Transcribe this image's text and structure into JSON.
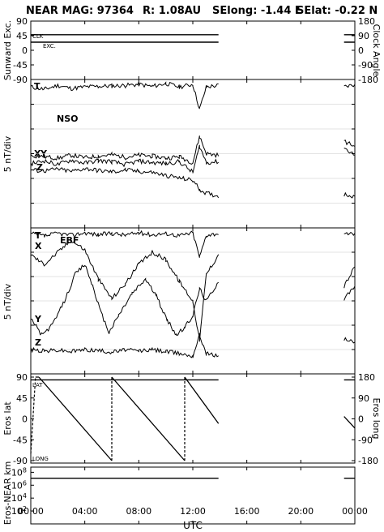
{
  "header": {
    "title": "NEAR MAG: 97364",
    "distance": "R: 1.08AU",
    "selong": "SElong:   -1.44 E",
    "selat": "SElat:   -0.22 N"
  },
  "chart_data": [
    {
      "type": "line",
      "panel": "sunward",
      "ylabel": "Sunward Exc.",
      "y2label": "Clock Angle",
      "ylim": [
        -90,
        90
      ],
      "y2lim": [
        -180,
        180
      ],
      "yticks": [
        "90",
        "45",
        "0",
        "-45",
        "-90"
      ],
      "y2ticks": [
        "180",
        "90",
        "0",
        "-90",
        "-180"
      ],
      "inner_labels": [
        "CLK",
        "EXC."
      ],
      "series": [
        {
          "name": "CLK",
          "segments": [
            [
              [
                0.0,
                48
              ],
              [
                13.9,
                48
              ]
            ],
            [
              [
                23.2,
                48
              ],
              [
                24.0,
                48
              ]
            ]
          ]
        },
        {
          "name": "EXC.",
          "segments": [
            [
              [
                0.0,
                25
              ],
              [
                13.9,
                25
              ]
            ],
            [
              [
                23.2,
                25
              ],
              [
                24.0,
                25
              ]
            ]
          ]
        }
      ]
    },
    {
      "type": "line",
      "panel": "nso",
      "label": "NSO",
      "ylabel": "5 nT/div",
      "ylim": [
        -15,
        15
      ],
      "series_labels": [
        "T",
        "X",
        "Y",
        "Z"
      ],
      "series": [
        {
          "name": "T",
          "points": [
            [
              0,
              13.5
            ],
            [
              1,
              13.0
            ],
            [
              2,
              13.8
            ],
            [
              3,
              13.2
            ],
            [
              4,
              13.5
            ],
            [
              5,
              13.6
            ],
            [
              6,
              13.7
            ],
            [
              7,
              13.8
            ],
            [
              8,
              14.0
            ],
            [
              9,
              13.6
            ],
            [
              10,
              14.2
            ],
            [
              11,
              13.5
            ],
            [
              12,
              14.0
            ],
            [
              12.5,
              9.0
            ],
            [
              13,
              13.5
            ],
            [
              13.9,
              13.8
            ],
            [
              23.2,
              13.5
            ],
            [
              24.0,
              14.0
            ]
          ]
        },
        {
          "name": "X",
          "points": [
            [
              0,
              -0.4
            ],
            [
              1,
              -0.6
            ],
            [
              2,
              -0.9
            ],
            [
              3,
              -0.3
            ],
            [
              4,
              -0.8
            ],
            [
              5,
              -0.5
            ],
            [
              6,
              -0.2
            ],
            [
              7,
              -0.7
            ],
            [
              8,
              -0.3
            ],
            [
              9,
              -0.5
            ],
            [
              10,
              -0.9
            ],
            [
              11,
              -0.6
            ],
            [
              12,
              -1.8
            ],
            [
              12.5,
              3.5
            ],
            [
              13,
              0.0
            ],
            [
              13.9,
              -0.3
            ],
            [
              23.2,
              2.5
            ],
            [
              24.0,
              1.5
            ]
          ]
        },
        {
          "name": "Y",
          "points": [
            [
              0,
              -2.0
            ],
            [
              1,
              -1.5
            ],
            [
              2,
              -2.2
            ],
            [
              3,
              -1.3
            ],
            [
              4,
              -1.9
            ],
            [
              5,
              -1.4
            ],
            [
              6,
              -1.6
            ],
            [
              7,
              -2.2
            ],
            [
              8,
              -1.5
            ],
            [
              9,
              -1.8
            ],
            [
              10,
              -2.0
            ],
            [
              11,
              -1.6
            ],
            [
              12,
              -3.8
            ],
            [
              12.5,
              1.5
            ],
            [
              13,
              -1.8
            ],
            [
              13.9,
              -1.6
            ],
            [
              23.2,
              1.2
            ],
            [
              24.0,
              -0.3
            ]
          ]
        },
        {
          "name": "Z",
          "points": [
            [
              0,
              -3.3
            ],
            [
              1,
              -3.5
            ],
            [
              2,
              -3.1
            ],
            [
              3,
              -3.6
            ],
            [
              4,
              -3.0
            ],
            [
              5,
              -3.4
            ],
            [
              6,
              -3.7
            ],
            [
              7,
              -3.3
            ],
            [
              8,
              -3.6
            ],
            [
              9,
              -3.8
            ],
            [
              10,
              -4.4
            ],
            [
              11,
              -4.9
            ],
            [
              12,
              -5.4
            ],
            [
              12.5,
              -7.2
            ],
            [
              13,
              -8.0
            ],
            [
              13.9,
              -8.6
            ],
            [
              23.2,
              -8.2
            ],
            [
              24.0,
              -8.6
            ]
          ]
        }
      ]
    },
    {
      "type": "line",
      "panel": "ebf",
      "label": "EBF",
      "ylabel": "5 nT/div",
      "ylim": [
        -15,
        15
      ],
      "series_labels": [
        "T",
        "X",
        "Y",
        "Z"
      ],
      "series": [
        {
          "name": "T",
          "points": [
            [
              0,
              13.8
            ],
            [
              1,
              13.3
            ],
            [
              2,
              13.9
            ],
            [
              3,
              13.5
            ],
            [
              4,
              14.0
            ],
            [
              5,
              13.6
            ],
            [
              6,
              13.9
            ],
            [
              7,
              13.5
            ],
            [
              8,
              14.0
            ],
            [
              9,
              13.6
            ],
            [
              10,
              13.9
            ],
            [
              11,
              13.4
            ],
            [
              12,
              14.0
            ],
            [
              12.5,
              9.0
            ],
            [
              13,
              13.5
            ],
            [
              13.9,
              13.9
            ],
            [
              23.2,
              13.5
            ],
            [
              24.0,
              13.9
            ]
          ]
        },
        {
          "name": "X",
          "points": [
            [
              0,
              9.5
            ],
            [
              1,
              7.5
            ],
            [
              2,
              10.0
            ],
            [
              3,
              12.5
            ],
            [
              4,
              10.5
            ],
            [
              5,
              4.5
            ],
            [
              6,
              0.5
            ],
            [
              7,
              3.5
            ],
            [
              8,
              7.5
            ],
            [
              9,
              10.0
            ],
            [
              10,
              8.5
            ],
            [
              11,
              4.0
            ],
            [
              12,
              0.0
            ],
            [
              12.5,
              -8.0
            ],
            [
              13,
              5.5
            ],
            [
              13.9,
              9.5
            ],
            [
              23.2,
              3.0
            ],
            [
              24.0,
              7.0
            ]
          ]
        },
        {
          "name": "Y",
          "points": [
            [
              0,
              -3.5
            ],
            [
              0.8,
              -7.0
            ],
            [
              1.6,
              -5.0
            ],
            [
              2.5,
              0.0
            ],
            [
              3.3,
              5.5
            ],
            [
              4.0,
              7.5
            ],
            [
              4.6,
              3.0
            ],
            [
              5.2,
              -2.5
            ],
            [
              5.8,
              -6.5
            ],
            [
              6.5,
              -3.0
            ],
            [
              7.5,
              1.5
            ],
            [
              8.5,
              4.5
            ],
            [
              9.3,
              1.0
            ],
            [
              10.1,
              -4.0
            ],
            [
              10.8,
              -7.0
            ],
            [
              11.4,
              -5.5
            ],
            [
              12,
              -3.0
            ],
            [
              12.5,
              2.5
            ],
            [
              13,
              0.0
            ],
            [
              13.9,
              4.0
            ],
            [
              23.2,
              0.5
            ],
            [
              24.0,
              3.0
            ]
          ]
        },
        {
          "name": "Z",
          "points": [
            [
              0,
              -10.0
            ],
            [
              1,
              -10.3
            ],
            [
              2,
              -10.1
            ],
            [
              3,
              -10.4
            ],
            [
              4,
              -10.0
            ],
            [
              5,
              -10.2
            ],
            [
              6,
              -10.5
            ],
            [
              7,
              -10.1
            ],
            [
              8,
              -10.3
            ],
            [
              9,
              -10.0
            ],
            [
              10,
              -10.4
            ],
            [
              11,
              -10.8
            ],
            [
              12,
              -11.3
            ],
            [
              12.5,
              -7.0
            ],
            [
              13,
              -10.8
            ],
            [
              13.9,
              -11.3
            ],
            [
              23.2,
              -7.8
            ],
            [
              24.0,
              -8.5
            ]
          ]
        }
      ]
    },
    {
      "type": "line",
      "panel": "eros_position",
      "ylabel": "Eros lat",
      "y2label": "Eros long",
      "ylim": [
        -90,
        90
      ],
      "y2lim": [
        -180,
        180
      ],
      "yticks": [
        "90",
        "45",
        "0",
        "-45",
        "-90"
      ],
      "y2ticks": [
        "180",
        "90",
        "0",
        "-90",
        "-180"
      ],
      "inner_labels": [
        "LAT",
        "LONG"
      ],
      "series": [
        {
          "name": "LAT",
          "segments": [
            [
              [
                0.0,
                84
              ],
              [
                13.9,
                84
              ]
            ],
            [
              [
                23.2,
                84
              ],
              [
                24.0,
                84
              ]
            ]
          ]
        },
        {
          "name": "LONG",
          "segments": [
            [
              [
                0.0,
                -150
              ],
              [
                0.35,
                180
              ],
              [
                0.6,
                180
              ],
              [
                6.0,
                -180
              ],
              [
                6.0,
                180
              ],
              [
                11.4,
                -180
              ],
              [
                11.4,
                180
              ],
              [
                13.9,
                -20
              ]
            ],
            [
              [
                23.2,
                10
              ],
              [
                24.0,
                -40
              ]
            ]
          ]
        }
      ]
    },
    {
      "type": "line",
      "panel": "eros_near_distance",
      "ylabel": "Eros-NEAR km",
      "yscale": "log",
      "yticks": [
        "10^8",
        "10^6",
        "10^4",
        "10^2"
      ],
      "series": [
        {
          "name": "Eros-NEAR distance",
          "segments": [
            [
              [
                0.0,
                12000000
              ],
              [
                13.9,
                12000000
              ]
            ],
            [
              [
                23.2,
                12000000
              ],
              [
                24.0,
                12000000
              ]
            ]
          ]
        }
      ]
    }
  ],
  "x_axis": {
    "label": "UTC",
    "range": [
      0,
      24
    ],
    "ticks": [
      "00:00",
      "04:00",
      "08:00",
      "12:00",
      "16:00",
      "20:00",
      "00:00"
    ]
  }
}
